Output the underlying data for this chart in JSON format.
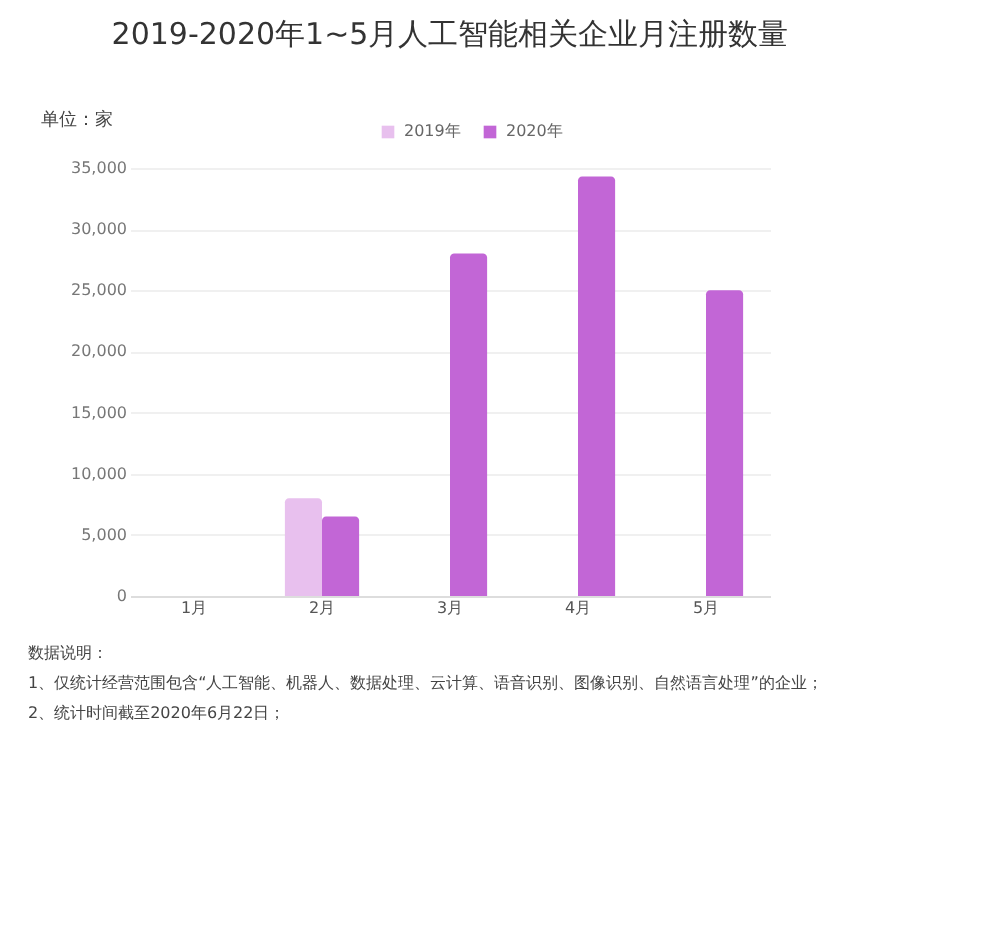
{
  "chart_data": {
    "type": "bar",
    "title": "2019-2020年1~5月人工智能相关企业月注册数量",
    "ylabel": "单位：家",
    "categories": [
      "1月",
      "2月",
      "3月",
      "4月",
      "5月"
    ],
    "series": [
      {
        "name": "2019年",
        "color": "#e8c0ee",
        "values": [
          null,
          8000,
          null,
          null,
          null
        ]
      },
      {
        "name": "2020年",
        "color": "#c266d6",
        "values": [
          null,
          6500,
          28000,
          34300,
          25000
        ]
      }
    ],
    "ylim": [
      0,
      35000
    ],
    "yticks": [
      {
        "value": 0,
        "label": "0"
      },
      {
        "value": 5000,
        "label": "5,000"
      },
      {
        "value": 10000,
        "label": "10,000"
      },
      {
        "value": 15000,
        "label": "15,000"
      },
      {
        "value": 20000,
        "label": "20,000"
      },
      {
        "value": 25000,
        "label": "25,000"
      },
      {
        "value": 30000,
        "label": "30,000"
      },
      {
        "value": 35000,
        "label": "35,000"
      }
    ],
    "grid": "y",
    "legend": "top",
    "annotations": [
      "数据说明：",
      "1、仅统计经营范围包含“人工智能、机器人、数据处理、云计算、语音识别、图像识别、自然语言处理”的企业；",
      "2、统计时间截至2020年6月22日；"
    ]
  }
}
